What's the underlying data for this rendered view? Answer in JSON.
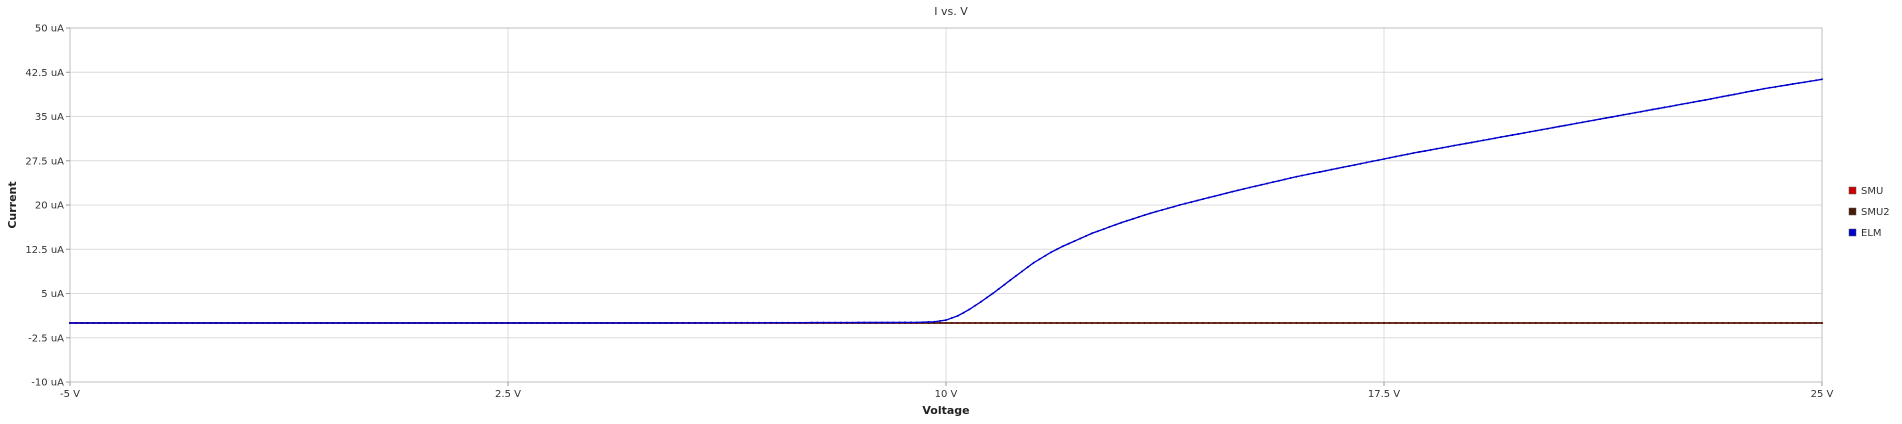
{
  "chart_data": {
    "type": "line",
    "title": "I vs. V",
    "xlabel": "Voltage",
    "ylabel": "Current",
    "xlim": [
      -5,
      25
    ],
    "ylim": [
      -10,
      50
    ],
    "x_unit": "V",
    "y_unit": "uA",
    "x_ticks": [
      -5,
      2.5,
      10,
      17.5,
      25
    ],
    "x_tick_labels": [
      "-5 V",
      "2.5 V",
      "10 V",
      "17.5 V",
      "25 V"
    ],
    "y_ticks": [
      -10,
      -2.5,
      5,
      12.5,
      20,
      27.5,
      35,
      42.5,
      50
    ],
    "y_tick_labels": [
      "-10 uA",
      "-2.5 uA",
      "5 uA",
      "12.5 uA",
      "20 uA",
      "27.5 uA",
      "35 uA",
      "42.5 uA",
      "50 uA"
    ],
    "grid": true,
    "legend_position": "right",
    "series": [
      {
        "name": "SMU",
        "color": "#cc0000",
        "x": [
          -5,
          25
        ],
        "y": [
          0,
          0
        ]
      },
      {
        "name": "SMU2",
        "color": "#4a1a0a",
        "x": [
          -5,
          25
        ],
        "y": [
          0,
          0
        ]
      },
      {
        "name": "ELM",
        "color": "#0000cc",
        "x": [
          -5,
          0,
          5,
          9.5,
          9.8,
          10,
          10.2,
          10.4,
          10.6,
          10.8,
          11,
          11.2,
          11.5,
          11.8,
          12,
          12.5,
          13,
          13.5,
          14,
          15,
          16,
          17,
          18,
          19,
          20,
          21,
          22,
          23,
          24,
          25
        ],
        "y": [
          0,
          0,
          0,
          0.1,
          0.2,
          0.5,
          1.2,
          2.3,
          3.6,
          5.0,
          6.5,
          8.0,
          10.2,
          12.0,
          13.0,
          15.2,
          17.0,
          18.6,
          20.0,
          22.5,
          24.8,
          26.8,
          28.8,
          30.6,
          32.4,
          34.2,
          36.0,
          37.8,
          39.7,
          41.3
        ]
      }
    ]
  }
}
